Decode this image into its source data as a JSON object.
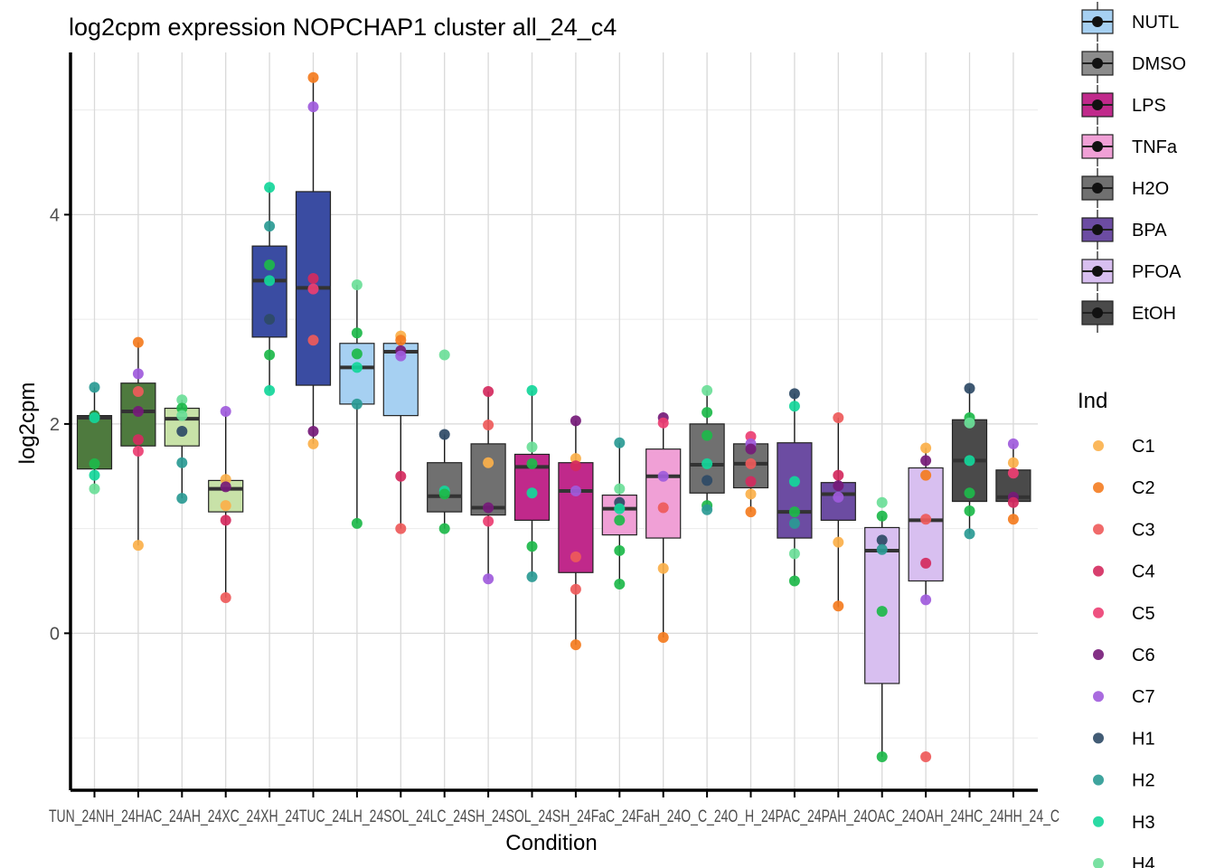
{
  "chart_data": {
    "type": "box",
    "title": "log2cpm expression NOPCHAP1 cluster all_24_c4",
    "xlabel": "Condition",
    "ylabel": "log2cpm",
    "ylim": [
      -1.5,
      5.55
    ],
    "yticks": [
      0,
      2,
      4
    ],
    "grid": true,
    "tick_labels_text": "TUN_24NH_24HAC_24AH_24XC_24XH_24TUC_24LH_24SOL_24LC_24SH_24SOL_24SH_24FaC_24FaH_24O_C_24O_H_24PAC_24PAH_24OAC_24OAH_24HC_24HH_24_C",
    "series": [
      {
        "cat": 1,
        "treat": "EtOH",
        "box": [
          1.57,
          2.06,
          2.08
        ],
        "whisker": [
          1.37,
          2.35
        ],
        "points": [
          [
            "H2",
            2.35
          ],
          [
            "C9",
            2.08
          ],
          [
            "H3",
            2.06
          ],
          [
            "H10",
            1.62
          ],
          [
            "H3",
            1.51
          ],
          [
            "H4",
            1.38
          ]
        ]
      },
      {
        "cat": 2,
        "treat": "EtOH",
        "box": [
          1.79,
          2.12,
          2.39
        ],
        "whisker": [
          0.84,
          2.78
        ],
        "points": [
          [
            "C2",
            2.78
          ],
          [
            "C7",
            2.48
          ],
          [
            "C3",
            2.31
          ],
          [
            "C6",
            2.12
          ],
          [
            "C4",
            1.85
          ],
          [
            "C5",
            1.74
          ],
          [
            "C1",
            0.84
          ]
        ]
      },
      {
        "cat": 3,
        "treat": "PFOA",
        "box": [
          1.79,
          2.05,
          2.15
        ],
        "whisker": [
          1.29,
          2.23
        ],
        "points": [
          [
            "H4",
            2.23
          ],
          [
            "H10",
            2.15
          ],
          [
            "H4",
            2.08
          ],
          [
            "H1",
            1.93
          ],
          [
            "H2",
            1.63
          ],
          [
            "H2",
            1.29
          ]
        ]
      },
      {
        "cat": 4,
        "treat": "PFOA",
        "box": [
          1.16,
          1.38,
          1.46
        ],
        "whisker": [
          0.34,
          2.12
        ],
        "points": [
          [
            "C7",
            2.12
          ],
          [
            "C1",
            1.47
          ],
          [
            "C6",
            1.4
          ],
          [
            "C1",
            1.22
          ],
          [
            "C4",
            1.08
          ],
          [
            "C3",
            0.34
          ]
        ]
      },
      {
        "cat": 5,
        "treat": "BPA",
        "box": [
          2.83,
          3.37,
          3.7
        ],
        "whisker": [
          2.32,
          4.26
        ],
        "points": [
          [
            "H3",
            4.26
          ],
          [
            "H2",
            3.89
          ],
          [
            "H10",
            3.52
          ],
          [
            "H3",
            3.37
          ],
          [
            "H1",
            3.0
          ],
          [
            "H10",
            2.66
          ],
          [
            "H3",
            2.32
          ]
        ]
      },
      {
        "cat": 6,
        "treat": "BPA",
        "box": [
          2.37,
          3.3,
          4.22
        ],
        "whisker": [
          1.81,
          5.31
        ],
        "points": [
          [
            "C2",
            5.31
          ],
          [
            "C7",
            5.03
          ],
          [
            "C4",
            3.39
          ],
          [
            "C5",
            3.29
          ],
          [
            "C3",
            2.8
          ],
          [
            "C6",
            1.93
          ],
          [
            "C1",
            1.81
          ]
        ]
      },
      {
        "cat": 7,
        "treat": "NUTL",
        "box": [
          2.19,
          2.54,
          2.77
        ],
        "whisker": [
          1.05,
          3.33
        ],
        "points": [
          [
            "H4",
            3.33
          ],
          [
            "H10",
            2.87
          ],
          [
            "H10",
            2.67
          ],
          [
            "H3",
            2.54
          ],
          [
            "H2",
            2.19
          ],
          [
            "H10",
            1.05
          ]
        ]
      },
      {
        "cat": 8,
        "treat": "NUTL",
        "box": [
          2.08,
          2.69,
          2.77
        ],
        "whisker": [
          1.0,
          2.84
        ],
        "points": [
          [
            "C1",
            2.84
          ],
          [
            "C2",
            2.8
          ],
          [
            "C6",
            2.7
          ],
          [
            "C7",
            2.65
          ],
          [
            "C4",
            1.5
          ],
          [
            "C3",
            1.0
          ]
        ]
      },
      {
        "cat": 9,
        "treat": "H2O",
        "box": [
          1.16,
          1.31,
          1.63
        ],
        "whisker": [
          1.0,
          1.9
        ],
        "points": [
          [
            "H4",
            2.66
          ],
          [
            "H1",
            1.9
          ],
          [
            "H3",
            1.36
          ],
          [
            "H10",
            1.33
          ],
          [
            "H10",
            1.0
          ]
        ]
      },
      {
        "cat": 10,
        "treat": "H2O",
        "box": [
          1.13,
          1.2,
          1.81
        ],
        "whisker": [
          0.52,
          2.31
        ],
        "points": [
          [
            "C4",
            2.31
          ],
          [
            "C3",
            1.99
          ],
          [
            "C1",
            1.63
          ],
          [
            "C6",
            1.2
          ],
          [
            "C5",
            1.07
          ],
          [
            "C7",
            0.52
          ]
        ]
      },
      {
        "cat": 11,
        "treat": "LPS",
        "box": [
          1.08,
          1.59,
          1.71
        ],
        "whisker": [
          0.54,
          2.32
        ],
        "points": [
          [
            "H3",
            2.32
          ],
          [
            "H4",
            1.78
          ],
          [
            "H10",
            1.62
          ],
          [
            "H3",
            1.34
          ],
          [
            "H10",
            0.83
          ],
          [
            "H2",
            0.54
          ]
        ]
      },
      {
        "cat": 12,
        "treat": "LPS",
        "box": [
          0.58,
          1.36,
          1.63
        ],
        "whisker": [
          -0.11,
          2.03
        ],
        "points": [
          [
            "C6",
            2.03
          ],
          [
            "C1",
            1.67
          ],
          [
            "C4",
            1.6
          ],
          [
            "C7",
            1.36
          ],
          [
            "C3",
            0.73
          ],
          [
            "C3",
            0.42
          ],
          [
            "C2",
            -0.11
          ]
        ]
      },
      {
        "cat": 13,
        "treat": "TNFa",
        "box": [
          0.94,
          1.19,
          1.32
        ],
        "whisker": [
          0.47,
          1.82
        ],
        "points": [
          [
            "H2",
            1.82
          ],
          [
            "H4",
            1.38
          ],
          [
            "H1",
            1.25
          ],
          [
            "H3",
            1.19
          ],
          [
            "H10",
            1.08
          ],
          [
            "H10",
            0.79
          ],
          [
            "H10",
            0.47
          ]
        ]
      },
      {
        "cat": 14,
        "treat": "TNFa",
        "box": [
          0.91,
          1.5,
          1.76
        ],
        "whisker": [
          -0.04,
          2.06
        ],
        "points": [
          [
            "C6",
            2.06
          ],
          [
            "C5",
            2.01
          ],
          [
            "C7",
            1.5
          ],
          [
            "C3",
            1.2
          ],
          [
            "C1",
            0.62
          ],
          [
            "C2",
            -0.04
          ]
        ]
      },
      {
        "cat": 15,
        "treat": "H2O",
        "box": [
          1.34,
          1.61,
          2.0
        ],
        "whisker": [
          1.17,
          2.32
        ],
        "points": [
          [
            "H4",
            2.32
          ],
          [
            "H10",
            2.11
          ],
          [
            "H10",
            1.89
          ],
          [
            "H3",
            1.62
          ],
          [
            "H1",
            1.46
          ],
          [
            "H10",
            1.22
          ],
          [
            "H2",
            1.18
          ]
        ]
      },
      {
        "cat": 16,
        "treat": "H2O",
        "box": [
          1.39,
          1.62,
          1.81
        ],
        "whisker": [
          1.16,
          1.81
        ],
        "points": [
          [
            "C5",
            1.88
          ],
          [
            "C7",
            1.81
          ],
          [
            "C6",
            1.76
          ],
          [
            "C3",
            1.62
          ],
          [
            "C4",
            1.45
          ],
          [
            "C1",
            1.33
          ],
          [
            "C2",
            1.16
          ]
        ]
      },
      {
        "cat": 17,
        "treat": "BPA",
        "box": [
          0.91,
          1.16,
          1.82
        ],
        "whisker": [
          0.5,
          2.29
        ],
        "points": [
          [
            "H1",
            2.29
          ],
          [
            "H3",
            2.17
          ],
          [
            "H3",
            1.45
          ],
          [
            "H10",
            1.16
          ],
          [
            "H2",
            1.05
          ],
          [
            "H4",
            0.76
          ],
          [
            "H10",
            0.5
          ]
        ]
      },
      {
        "cat": 18,
        "treat": "BPA",
        "box": [
          1.08,
          1.33,
          1.44
        ],
        "whisker": [
          0.25,
          2.06
        ],
        "points": [
          [
            "C3",
            2.06
          ],
          [
            "C4",
            1.51
          ],
          [
            "C6",
            1.41
          ],
          [
            "C7",
            1.3
          ],
          [
            "C1",
            0.87
          ],
          [
            "C2",
            0.26
          ]
        ]
      },
      {
        "cat": 19,
        "treat": "PFOA",
        "box": [
          -0.48,
          0.79,
          1.01
        ],
        "whisker": [
          -1.18,
          1.12
        ],
        "points": [
          [
            "H4",
            1.25
          ],
          [
            "H10",
            1.12
          ],
          [
            "H1",
            0.89
          ],
          [
            "H2",
            0.8
          ],
          [
            "H10",
            0.21
          ],
          [
            "H10",
            -1.18
          ]
        ]
      },
      {
        "cat": 20,
        "treat": "PFOA",
        "box": [
          0.5,
          1.08,
          1.58
        ],
        "whisker": [
          0.32,
          1.77
        ],
        "points": [
          [
            "C1",
            1.77
          ],
          [
            "C6",
            1.65
          ],
          [
            "C2",
            1.51
          ],
          [
            "C3",
            1.09
          ],
          [
            "C4",
            0.67
          ],
          [
            "C7",
            0.32
          ],
          [
            "C3",
            -1.18
          ]
        ]
      },
      {
        "cat": 21,
        "treat": "EtOH",
        "box": [
          1.26,
          1.65,
          2.04
        ],
        "whisker": [
          0.95,
          2.34
        ],
        "points": [
          [
            "H1",
            2.34
          ],
          [
            "H10",
            2.06
          ],
          [
            "H4",
            2.01
          ],
          [
            "H3",
            1.65
          ],
          [
            "H10",
            1.34
          ],
          [
            "H10",
            1.17
          ],
          [
            "H2",
            0.95
          ]
        ]
      },
      {
        "cat": 22,
        "treat": "EtOH",
        "box": [
          1.26,
          1.3,
          1.56
        ],
        "whisker": [
          1.09,
          1.81
        ],
        "points": [
          [
            "C7",
            1.81
          ],
          [
            "C1",
            1.63
          ],
          [
            "C5",
            1.53
          ],
          [
            "C6",
            1.3
          ],
          [
            "C4",
            1.25
          ],
          [
            "C2",
            1.09
          ]
        ]
      }
    ],
    "legend_treatment": {
      "title": "",
      "placement": "right",
      "entries": [
        {
          "label": "NUTL",
          "color": "#A6D0F2"
        },
        {
          "label": "DMSO",
          "color": "#8C8C8C"
        },
        {
          "label": "LPS",
          "color": "#C0298B"
        },
        {
          "label": "TNFa",
          "color": "#F0A0D6"
        },
        {
          "label": "H2O",
          "color": "#707070"
        },
        {
          "label": "BPA",
          "color": "#6C4CA2"
        },
        {
          "label": "PFOA",
          "color": "#D8BFF0"
        },
        {
          "label": "EtOH",
          "color": "#4A4A4A"
        }
      ]
    },
    "legend_ind": {
      "title": "Ind",
      "placement": "right",
      "entries": [
        {
          "label": "C1",
          "color": "#FBB04A"
        },
        {
          "label": "C2",
          "color": "#F47C20"
        },
        {
          "label": "C3",
          "color": "#EE5A5A"
        },
        {
          "label": "C4",
          "color": "#D42A5E"
        },
        {
          "label": "C5",
          "color": "#EC3E72"
        },
        {
          "label": "C6",
          "color": "#751A78"
        },
        {
          "label": "C7",
          "color": "#A05BDC"
        },
        {
          "label": "H1",
          "color": "#2E4A66"
        },
        {
          "label": "H2",
          "color": "#2A9A94"
        },
        {
          "label": "H3",
          "color": "#14D69A"
        },
        {
          "label": "H4",
          "color": "#6BDE98"
        }
      ]
    },
    "extra_point_colors": {
      "C9": "#2C7A2C",
      "H10": "#1DB84A"
    },
    "treatment_fill_overrides": {
      "EtOH_cat1_2": "#4E7A3E",
      "PFOA_cat3_4": "#C8E2A8",
      "BPA_cat5_6": "#3A4CA2"
    }
  }
}
